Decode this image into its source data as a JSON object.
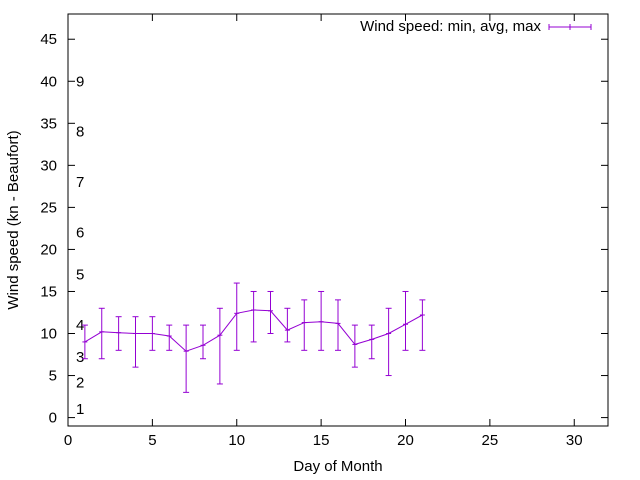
{
  "chart_data": {
    "type": "line",
    "xlabel": "Day of Month",
    "ylabel": "Wind speed (kn - Beaufort)",
    "xlim": [
      0,
      32
    ],
    "ylim": [
      -1,
      48
    ],
    "xticks": [
      0,
      5,
      10,
      15,
      20,
      25,
      30
    ],
    "yticks": [
      0,
      5,
      10,
      15,
      20,
      25,
      30,
      35,
      40,
      45
    ],
    "grid": false,
    "legend_position": "top-right",
    "series_color": "#9400d3",
    "series": [
      {
        "name": "Wind speed: min, avg, max",
        "points": [
          {
            "x": 1,
            "min": 7,
            "avg": 9.0,
            "max": 11
          },
          {
            "x": 2,
            "min": 7,
            "avg": 10.2,
            "max": 13
          },
          {
            "x": 3,
            "min": 8,
            "avg": 10.1,
            "max": 12
          },
          {
            "x": 4,
            "min": 6,
            "avg": 10.0,
            "max": 12
          },
          {
            "x": 5,
            "min": 8,
            "avg": 10.0,
            "max": 12
          },
          {
            "x": 6,
            "min": 8,
            "avg": 9.7,
            "max": 11
          },
          {
            "x": 7,
            "min": 3,
            "avg": 7.9,
            "max": 11
          },
          {
            "x": 8,
            "min": 7,
            "avg": 8.6,
            "max": 11
          },
          {
            "x": 9,
            "min": 4,
            "avg": 9.8,
            "max": 13
          },
          {
            "x": 10,
            "min": 8,
            "avg": 12.4,
            "max": 16
          },
          {
            "x": 11,
            "min": 9,
            "avg": 12.8,
            "max": 15
          },
          {
            "x": 12,
            "min": 10,
            "avg": 12.7,
            "max": 15
          },
          {
            "x": 13,
            "min": 9,
            "avg": 10.4,
            "max": 13
          },
          {
            "x": 14,
            "min": 8,
            "avg": 11.3,
            "max": 14
          },
          {
            "x": 15,
            "min": 8,
            "avg": 11.4,
            "max": 15
          },
          {
            "x": 16,
            "min": 8,
            "avg": 11.2,
            "max": 14
          },
          {
            "x": 17,
            "min": 6,
            "avg": 8.7,
            "max": 11
          },
          {
            "x": 18,
            "min": 7,
            "avg": 9.3,
            "max": 11
          },
          {
            "x": 19,
            "min": 5,
            "avg": 10.0,
            "max": 13
          },
          {
            "x": 20,
            "min": 8,
            "avg": 11.1,
            "max": 15
          },
          {
            "x": 21,
            "min": 8,
            "avg": 12.2,
            "max": 14
          }
        ]
      }
    ],
    "beaufort_labels": [
      {
        "text": "1",
        "y": 1.0
      },
      {
        "text": "2",
        "y": 4.2
      },
      {
        "text": "3",
        "y": 7.2
      },
      {
        "text": "4",
        "y": 11.0
      },
      {
        "text": "5",
        "y": 17.0
      },
      {
        "text": "6",
        "y": 22.0
      },
      {
        "text": "7",
        "y": 28.0
      },
      {
        "text": "8",
        "y": 34.0
      },
      {
        "text": "9",
        "y": 40.0
      }
    ]
  }
}
